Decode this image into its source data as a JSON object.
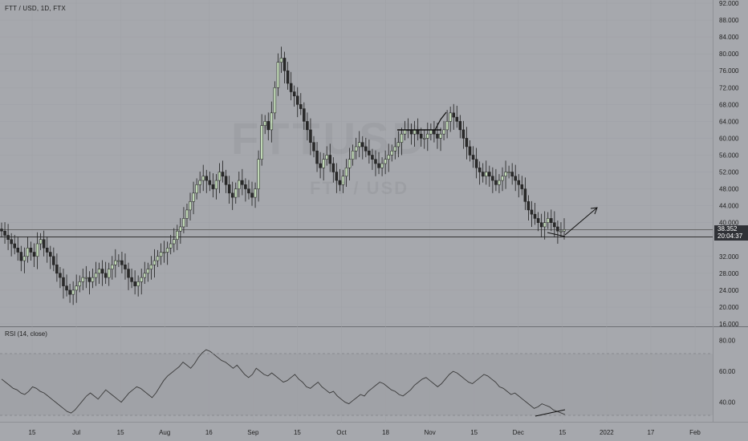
{
  "header": {
    "symbol_line": "FTT / USD, 1D, FTX",
    "watermark_symbol": "FTTUSD",
    "watermark_name": "FTT / USD"
  },
  "price_axis": {
    "ticks": [
      "92.000",
      "88.000",
      "84.000",
      "80.000",
      "76.000",
      "72.000",
      "68.000",
      "64.000",
      "60.000",
      "56.000",
      "52.000",
      "48.000",
      "44.000",
      "40.000",
      "32.000",
      "28.000",
      "24.000",
      "20.000",
      "16.000"
    ]
  },
  "last_price": {
    "value": "38.352",
    "countdown": "20:04:37"
  },
  "rsi": {
    "title": "RSI (14, close)",
    "ticks": [
      "80.00",
      "60.00",
      "40.00"
    ]
  },
  "time_axis": {
    "labels": [
      "15",
      "Jul",
      "15",
      "Aug",
      "16",
      "Sep",
      "15",
      "Oct",
      "18",
      "Nov",
      "15",
      "Dec",
      "15",
      "2022",
      "17",
      "Feb"
    ]
  },
  "colors": {
    "background": "#a6a8ad",
    "candle_up": "#c0d8b6",
    "candle_down": "#2a2a2a",
    "accent_pink": "#f26b8a"
  },
  "chart_data": {
    "type": "candlestick",
    "symbol": "FTT / USD",
    "interval": "1D",
    "exchange": "FTX",
    "y_range": [
      16,
      92
    ],
    "close_series": [
      38,
      37,
      36,
      35,
      34,
      33,
      31,
      32,
      34,
      33,
      32,
      35,
      36,
      34,
      33,
      32,
      30,
      28,
      27,
      25,
      24,
      23,
      24,
      25,
      26,
      27,
      27,
      26,
      27,
      28,
      29,
      28,
      27,
      29,
      30,
      31,
      31,
      30,
      29,
      27,
      26,
      25,
      26,
      27,
      28,
      29,
      30,
      31,
      32,
      33,
      33,
      34,
      35,
      36,
      38,
      39,
      41,
      43,
      45,
      47,
      49,
      50,
      51,
      50,
      49,
      48,
      50,
      52,
      51,
      49,
      47,
      46,
      48,
      50,
      49,
      48,
      47,
      46,
      48,
      55,
      63,
      64,
      62,
      66,
      72,
      78,
      79,
      76,
      73,
      71,
      70,
      68,
      67,
      64,
      62,
      59,
      57,
      54,
      53,
      55,
      56,
      54,
      52,
      50,
      49,
      51,
      53,
      55,
      57,
      58,
      59,
      58,
      57,
      56,
      55,
      54,
      53,
      54,
      55,
      56,
      57,
      58,
      59,
      61,
      62,
      62,
      61,
      62,
      61,
      60,
      60,
      61,
      62,
      61,
      60,
      61,
      62,
      64,
      66,
      65,
      64,
      62,
      60,
      58,
      56,
      55,
      53,
      52,
      51,
      52,
      51,
      50,
      49,
      50,
      51,
      52,
      52,
      51,
      50,
      49,
      48,
      45,
      43,
      42,
      41,
      40,
      39,
      40,
      41,
      40,
      39,
      38,
      38,
      38.35
    ],
    "rsi_series": [
      55,
      53,
      51,
      49,
      48,
      46,
      45,
      47,
      50,
      49,
      47,
      46,
      44,
      42,
      40,
      38,
      36,
      34,
      33,
      35,
      38,
      41,
      44,
      46,
      44,
      42,
      45,
      48,
      46,
      44,
      42,
      40,
      43,
      46,
      48,
      50,
      49,
      47,
      45,
      43,
      46,
      50,
      54,
      57,
      59,
      61,
      63,
      66,
      64,
      62,
      65,
      69,
      72,
      74,
      73,
      71,
      69,
      67,
      66,
      64,
      62,
      64,
      61,
      58,
      56,
      58,
      62,
      60,
      58,
      57,
      59,
      57,
      55,
      53,
      54,
      56,
      58,
      55,
      53,
      50,
      49,
      51,
      53,
      50,
      48,
      46,
      47,
      44,
      42,
      40,
      39,
      41,
      43,
      45,
      44,
      47,
      49,
      51,
      53,
      52,
      50,
      48,
      47,
      45,
      44,
      46,
      48,
      51,
      53,
      55,
      56,
      54,
      52,
      50,
      52,
      55,
      58,
      60,
      59,
      57,
      55,
      53,
      52,
      54,
      56,
      58,
      57,
      55,
      53,
      50,
      49,
      47,
      45,
      46,
      44,
      42,
      40,
      38,
      36,
      37,
      39,
      38,
      37,
      35,
      34,
      33,
      32
    ],
    "rsi_ylim": [
      30,
      85
    ],
    "rsi_levels": [
      70,
      30
    ]
  }
}
